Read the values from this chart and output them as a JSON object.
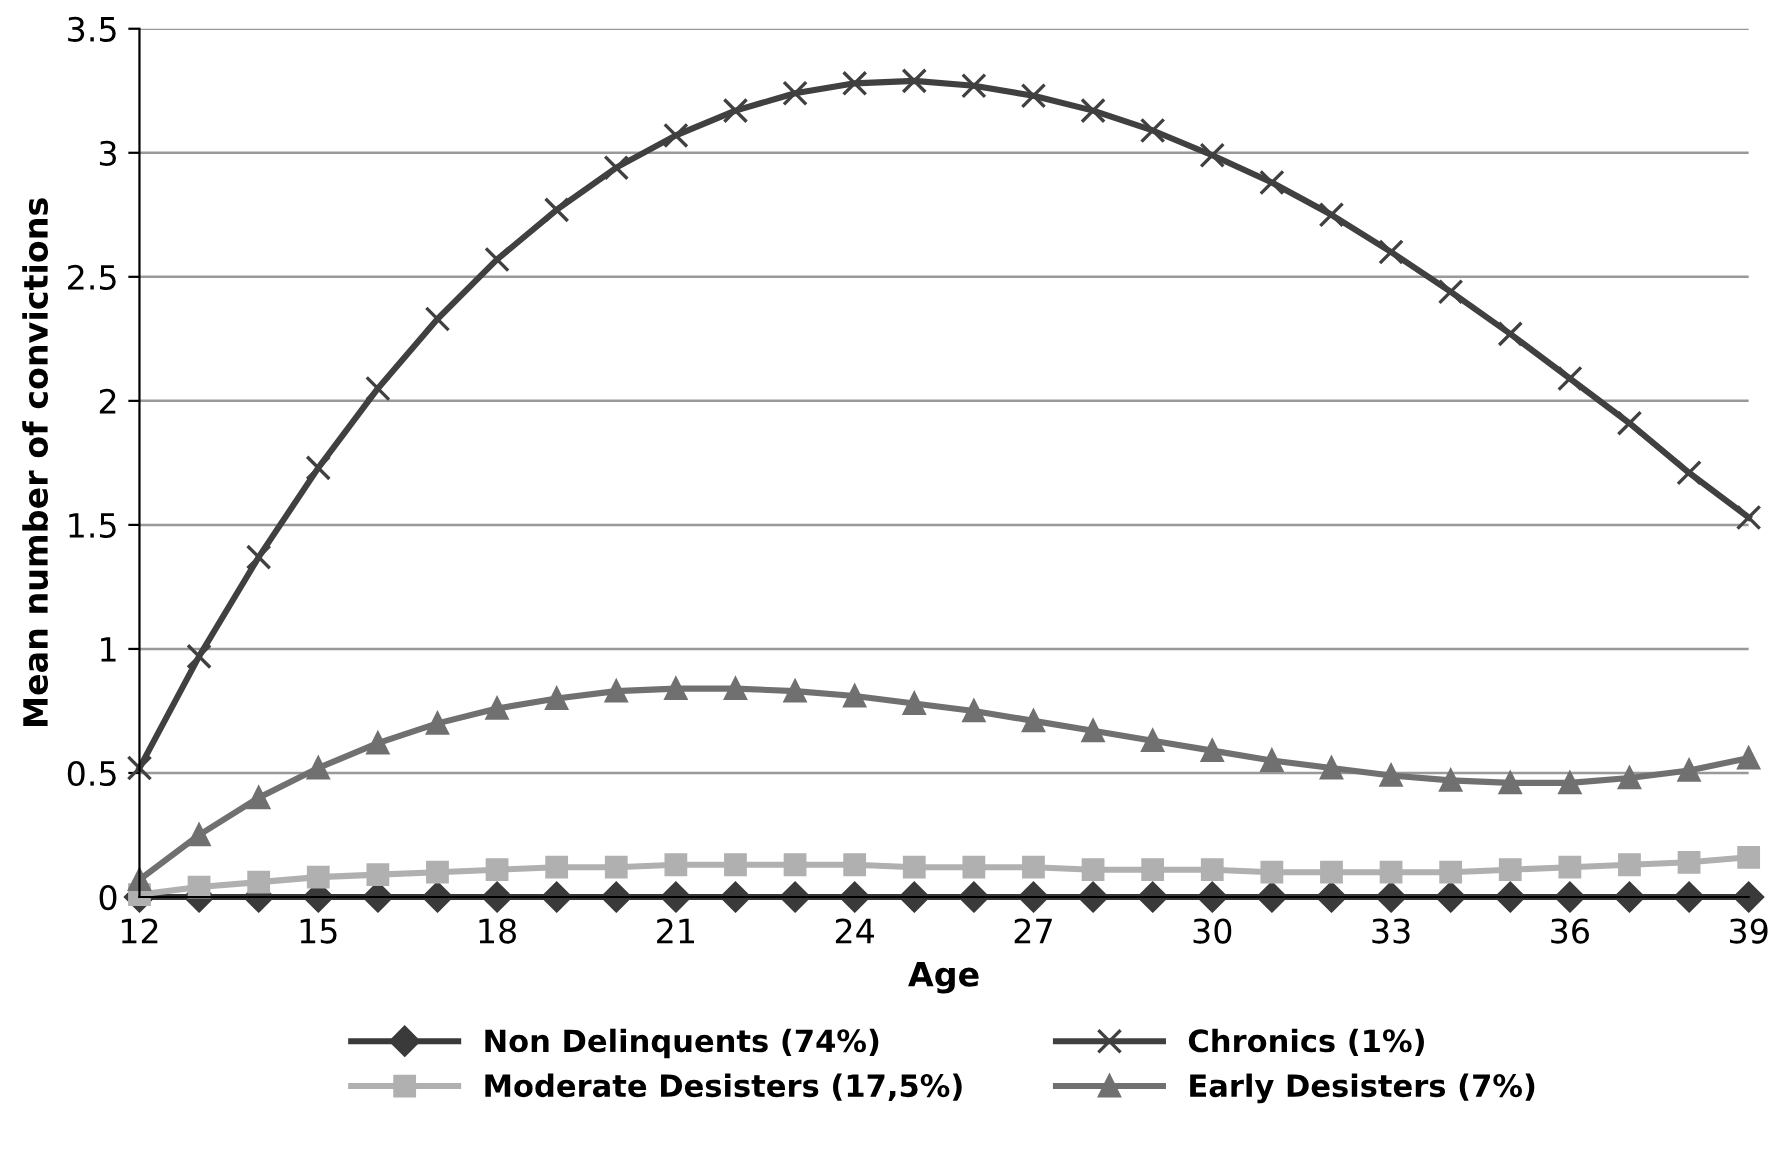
{
  "chart_data": {
    "type": "line",
    "xlabel": "Age",
    "ylabel": "Mean number of convictions",
    "x": [
      12,
      13,
      14,
      15,
      16,
      17,
      18,
      19,
      20,
      21,
      22,
      23,
      24,
      25,
      26,
      27,
      28,
      29,
      30,
      31,
      32,
      33,
      34,
      35,
      36,
      37,
      38,
      39
    ],
    "xlim": [
      12,
      39
    ],
    "xticks": [
      12,
      15,
      18,
      21,
      24,
      27,
      30,
      33,
      36,
      39
    ],
    "ylim": [
      0,
      3.5
    ],
    "yticks": [
      0,
      0.5,
      1,
      1.5,
      2,
      2.5,
      3,
      3.5
    ],
    "grid": "y",
    "legend": "bottom",
    "line_style": "solid",
    "series": [
      {
        "name": "Non Delinquents (74%)",
        "color": "#3a3a3a",
        "marker": "diamond",
        "values": [
          0,
          0,
          0,
          0,
          0,
          0,
          0,
          0,
          0,
          0,
          0,
          0,
          0,
          0,
          0,
          0,
          0,
          0,
          0,
          0,
          0,
          0,
          0,
          0,
          0,
          0,
          0,
          0
        ]
      },
      {
        "name": "Chronics (1%)",
        "color": "#404040",
        "marker": "cross",
        "values": [
          0.52,
          0.97,
          1.37,
          1.73,
          2.05,
          2.33,
          2.57,
          2.77,
          2.94,
          3.07,
          3.17,
          3.24,
          3.28,
          3.29,
          3.27,
          3.23,
          3.17,
          3.09,
          2.99,
          2.88,
          2.75,
          2.6,
          2.44,
          2.27,
          2.09,
          1.91,
          1.71,
          1.53
        ]
      },
      {
        "name": "Moderate Desisters (17,5%)",
        "color": "#b0b0b0",
        "marker": "square",
        "values": [
          0.01,
          0.04,
          0.06,
          0.08,
          0.09,
          0.1,
          0.11,
          0.12,
          0.12,
          0.13,
          0.13,
          0.13,
          0.13,
          0.12,
          0.12,
          0.12,
          0.11,
          0.11,
          0.11,
          0.1,
          0.1,
          0.1,
          0.1,
          0.11,
          0.12,
          0.13,
          0.14,
          0.16
        ]
      },
      {
        "name": "Early Desisters (7%)",
        "color": "#707070",
        "marker": "triangle",
        "values": [
          0.07,
          0.25,
          0.4,
          0.52,
          0.62,
          0.7,
          0.76,
          0.8,
          0.83,
          0.84,
          0.84,
          0.83,
          0.81,
          0.78,
          0.75,
          0.71,
          0.67,
          0.63,
          0.59,
          0.55,
          0.52,
          0.49,
          0.47,
          0.46,
          0.46,
          0.48,
          0.51,
          0.56
        ]
      }
    ]
  }
}
